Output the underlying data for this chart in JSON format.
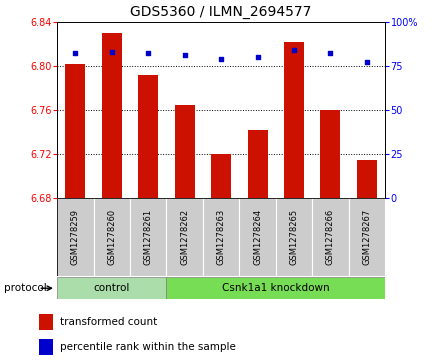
{
  "title": "GDS5360 / ILMN_2694577",
  "categories": [
    "GSM1278259",
    "GSM1278260",
    "GSM1278261",
    "GSM1278262",
    "GSM1278263",
    "GSM1278264",
    "GSM1278265",
    "GSM1278266",
    "GSM1278267"
  ],
  "bar_values": [
    6.802,
    6.83,
    6.792,
    6.764,
    6.72,
    6.742,
    6.822,
    6.76,
    6.714
  ],
  "percentile_values": [
    82,
    83,
    82,
    81,
    79,
    80,
    84,
    82,
    77
  ],
  "ymin": 6.68,
  "ymax": 6.84,
  "y2min": 0,
  "y2max": 100,
  "yticks": [
    6.68,
    6.72,
    6.76,
    6.8,
    6.84
  ],
  "y2ticks": [
    0,
    25,
    50,
    75,
    100
  ],
  "bar_color": "#cc1100",
  "dot_color": "#0000cc",
  "control_label": "control",
  "knockdown_label": "Csnk1a1 knockdown",
  "control_count": 3,
  "protocol_label": "protocol",
  "legend_bar": "transformed count",
  "legend_dot": "percentile rank within the sample",
  "control_bg": "#aaddaa",
  "knockdown_bg": "#77dd55",
  "sample_bg": "#cccccc",
  "title_fontsize": 10,
  "tick_fontsize": 7,
  "label_fontsize": 7.5
}
